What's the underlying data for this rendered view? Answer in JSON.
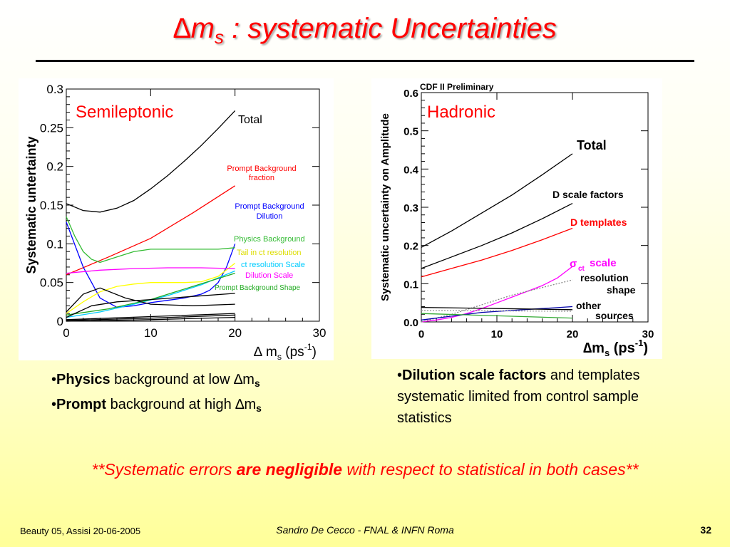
{
  "slide": {
    "title_symbol": "∆",
    "title_m": "m",
    "title_sub": "s",
    "title_rest": " : systematic Uncertainties"
  },
  "chart_data": [
    {
      "type": "line",
      "title": "Semileptonic",
      "ylabel": "Systematic untertainty",
      "xlabel_symbol": "∆ m",
      "xlabel_sub": "s",
      "xlabel_unit": " (ps",
      "xlabel_sup": "-1",
      "xlabel_close": ")",
      "xlim": [
        0,
        30
      ],
      "ylim": [
        0,
        0.3
      ],
      "xticks": [
        "0",
        "10",
        "20",
        "30"
      ],
      "yticks": [
        "0",
        "0.05",
        "0.1",
        "0.15",
        "0.2",
        "0.25",
        "0.3"
      ],
      "ytick_values": [
        0,
        0.05,
        0.1,
        0.15,
        0.2,
        0.25,
        0.3
      ],
      "xtick_values": [
        0,
        10,
        20,
        30
      ],
      "series": [
        {
          "name": "Total",
          "color": "#000000",
          "x": [
            0,
            2,
            4,
            6,
            8,
            10,
            12,
            14,
            16,
            18,
            20
          ],
          "y": [
            0.152,
            0.143,
            0.141,
            0.146,
            0.156,
            0.171,
            0.188,
            0.207,
            0.227,
            0.249,
            0.272
          ]
        },
        {
          "name": "Prompt Background fraction",
          "color": "#ff0000",
          "x": [
            0,
            5,
            10,
            15,
            20
          ],
          "y": [
            0.06,
            0.083,
            0.107,
            0.14,
            0.175
          ]
        },
        {
          "name": "Prompt Background Dilution",
          "color": "#0000ff",
          "x": [
            0,
            2,
            4,
            6,
            8,
            10,
            12,
            14,
            16,
            17,
            18,
            19,
            20
          ],
          "y": [
            0.128,
            0.07,
            0.03,
            0.018,
            0.02,
            0.024,
            0.027,
            0.03,
            0.035,
            0.04,
            0.05,
            0.07,
            0.1
          ]
        },
        {
          "name": "Physics Background",
          "color": "#33bb33",
          "x": [
            0,
            1,
            2,
            3,
            4,
            6,
            8,
            10,
            12,
            14,
            16,
            18,
            20
          ],
          "y": [
            0.135,
            0.11,
            0.09,
            0.08,
            0.076,
            0.083,
            0.09,
            0.093,
            0.093,
            0.093,
            0.093,
            0.093,
            0.095
          ]
        },
        {
          "name": "Tail in ct resolution",
          "color": "#ffff00",
          "x": [
            0,
            2,
            4,
            6,
            8,
            10,
            12,
            14,
            16,
            18,
            20
          ],
          "y": [
            0.01,
            0.025,
            0.038,
            0.045,
            0.048,
            0.05,
            0.05,
            0.05,
            0.051,
            0.058,
            0.075
          ]
        },
        {
          "name": "ct resolution Scale",
          "color": "#00ccff",
          "x": [
            0,
            4,
            8,
            12,
            16,
            20
          ],
          "y": [
            0.005,
            0.012,
            0.022,
            0.033,
            0.047,
            0.065
          ]
        },
        {
          "name": "Dilution Scale",
          "color": "#ff00ff",
          "x": [
            0,
            4,
            8,
            12,
            16,
            20
          ],
          "y": [
            0.062,
            0.066,
            0.068,
            0.069,
            0.069,
            0.068
          ]
        },
        {
          "name": "Prompt Background Shape",
          "color": "#22aa22",
          "x": [
            0,
            5,
            10,
            15,
            20
          ],
          "y": [
            0.008,
            0.016,
            0.028,
            0.045,
            0.062
          ]
        },
        {
          "name": "",
          "color": "#000000",
          "x": [
            0,
            3,
            6,
            10,
            15,
            20
          ],
          "y": [
            0.005,
            0.02,
            0.025,
            0.028,
            0.032,
            0.036
          ]
        },
        {
          "name": "",
          "color": "#000000",
          "x": [
            0,
            2,
            4,
            7,
            10,
            15,
            20
          ],
          "y": [
            0.012,
            0.035,
            0.043,
            0.03,
            0.022,
            0.02,
            0.022
          ]
        },
        {
          "name": "",
          "color": "#000000",
          "x": [
            0,
            10,
            20
          ],
          "y": [
            0.002,
            0.006,
            0.01
          ]
        },
        {
          "name": "",
          "color": "#000000",
          "x": [
            0,
            10,
            20
          ],
          "y": [
            0.001,
            0.004,
            0.008
          ]
        },
        {
          "name": "",
          "color": "#000000",
          "x": [
            0,
            10,
            20
          ],
          "y": [
            0.0,
            0.002,
            0.005
          ]
        }
      ],
      "labels": [
        {
          "text": "Total",
          "color": "#000000"
        },
        {
          "text": "Prompt Background",
          "color": "#ff0000"
        },
        {
          "text": "fraction",
          "color": "#ff0000"
        },
        {
          "text": "Prompt Background",
          "color": "#0000ff"
        },
        {
          "text": "Dilution",
          "color": "#0000ff"
        },
        {
          "text": "Physics Background",
          "color": "#33bb33"
        },
        {
          "text": "Tail in ct resolution",
          "color": "#dddd00"
        },
        {
          "text": "ct resolution Scale",
          "color": "#00ccff"
        },
        {
          "text": "Dilution Scale",
          "color": "#ff00ff"
        },
        {
          "text": "Prompt Background Shape",
          "color": "#22aa22"
        }
      ]
    },
    {
      "type": "line",
      "title": "Hadronic",
      "note": "CDF II Preliminary",
      "ylabel": "Systematic uncertainty on Amplitude",
      "xlabel_symbol": "∆m",
      "xlabel_sub": "s",
      "xlabel_unit": " (ps",
      "xlabel_sup": "-1",
      "xlabel_close": ")",
      "xlim": [
        0,
        30
      ],
      "ylim": [
        0,
        0.6
      ],
      "xticks": [
        "0",
        "10",
        "20",
        "30"
      ],
      "yticks": [
        "0.0",
        "0.1",
        "0.2",
        "0.3",
        "0.4",
        "0.5",
        "0.6"
      ],
      "ytick_values": [
        0,
        0.1,
        0.2,
        0.3,
        0.4,
        0.5,
        0.6
      ],
      "xtick_values": [
        0,
        10,
        20,
        30
      ],
      "series": [
        {
          "name": "Total",
          "color": "#000000",
          "x": [
            0,
            4,
            8,
            12,
            16,
            20
          ],
          "y": [
            0.195,
            0.238,
            0.285,
            0.332,
            0.385,
            0.44
          ]
        },
        {
          "name": "D scale factors",
          "color": "#000000",
          "x": [
            0,
            4,
            8,
            12,
            16,
            20
          ],
          "y": [
            0.14,
            0.17,
            0.2,
            0.233,
            0.27,
            0.31
          ]
        },
        {
          "name": "D templates",
          "color": "#ff0000",
          "x": [
            0,
            4,
            8,
            12,
            16,
            20
          ],
          "y": [
            0.118,
            0.14,
            0.162,
            0.187,
            0.215,
            0.245
          ]
        },
        {
          "name": "σct scale",
          "color": "#ff00ff",
          "x": [
            0,
            2,
            4,
            6,
            8,
            10,
            12,
            14,
            16,
            18,
            20
          ],
          "y": [
            0.0,
            0.005,
            0.012,
            0.022,
            0.035,
            0.05,
            0.065,
            0.08,
            0.095,
            0.115,
            0.145
          ]
        },
        {
          "name": "resolution shape",
          "color": "#888888",
          "x": [
            0,
            4,
            8,
            12,
            16,
            20
          ],
          "y": [
            0.0,
            0.02,
            0.045,
            0.07,
            0.09,
            0.11
          ]
        },
        {
          "name": "other sources",
          "color": "#0000aa",
          "x": [
            0,
            4,
            8,
            12,
            16,
            20
          ],
          "y": [
            0.005,
            0.015,
            0.025,
            0.03,
            0.035,
            0.04
          ]
        },
        {
          "name": "",
          "color": "#000000",
          "x": [
            0,
            20
          ],
          "y": [
            0.038,
            0.032
          ]
        },
        {
          "name": "",
          "color": "#33aa33",
          "x": [
            0,
            20
          ],
          "y": [
            0.022,
            0.01
          ]
        },
        {
          "name": "",
          "color": "#999999",
          "x": [
            0,
            20
          ],
          "y": [
            0.03,
            0.028
          ]
        }
      ],
      "labels": [
        {
          "text": "Total",
          "color": "#000000"
        },
        {
          "text": "D scale factors",
          "color": "#000000"
        },
        {
          "text": "D templates",
          "color": "#ff0000"
        },
        {
          "text": "σ",
          "color": "#ff00ff"
        },
        {
          "text": "ct",
          "color": "#ff00ff"
        },
        {
          "text": "scale",
          "color": "#ff00ff"
        },
        {
          "text": "resolution",
          "color": "#000000"
        },
        {
          "text": "shape",
          "color": "#000000"
        },
        {
          "text": "other",
          "color": "#000000"
        },
        {
          "text": "sources",
          "color": "#000000"
        }
      ]
    }
  ],
  "bullets_left": {
    "line1_bold": "Physics",
    "line1_rest": " background at low ∆m",
    "line1_sub": "s",
    "line2_bold": "Prompt",
    "line2_rest": " background at high ∆m",
    "line2_sub": "s"
  },
  "bullets_right": {
    "bold": "Dilution scale factors",
    "rest1": " and templates",
    "line2": "systematic limited from control sample",
    "line3": "statistics"
  },
  "conclusion": {
    "part1": "**Systematic errors ",
    "bold": "are negligible",
    "part2": " with respect to statistical in both cases**"
  },
  "footer": {
    "left": "Beauty 05, Assisi 20-06-2005",
    "center": "Sandro De Cecco - FNAL & INFN Roma",
    "page": "32"
  }
}
